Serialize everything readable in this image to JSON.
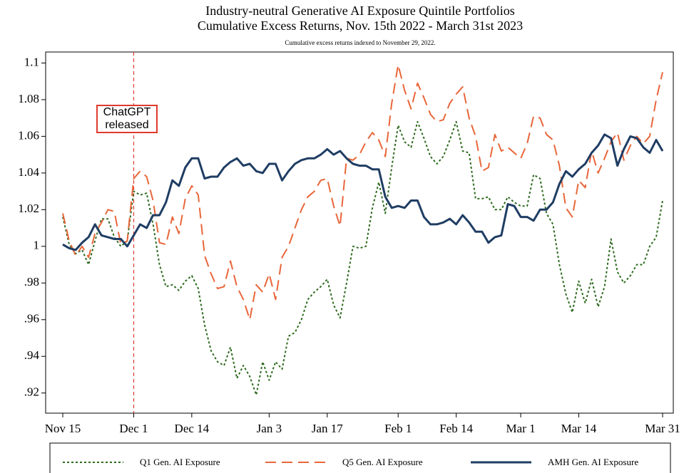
{
  "chart_data": {
    "type": "line",
    "title": [
      "Industry-neutral Generative AI Exposure Quintile Portfolios",
      "Cumulative Excess Returns, Nov. 15th 2022 - March 31st 2023"
    ],
    "subtitle": "Cumulative excess returns indexed to November 29, 2022.",
    "annotation": {
      "lines": [
        "ChatGPT",
        "released"
      ],
      "x": "Dec 1",
      "color": "#e03a2e"
    },
    "x": [
      "Nov 15",
      "Nov 16",
      "Nov 17",
      "Nov 18",
      "Nov 21",
      "Nov 22",
      "Nov 23",
      "Nov 25",
      "Nov 28",
      "Nov 29",
      "Nov 30",
      "Dec 1",
      "Dec 2",
      "Dec 5",
      "Dec 6",
      "Dec 7",
      "Dec 8",
      "Dec 9",
      "Dec 12",
      "Dec 13",
      "Dec 14",
      "Dec 15",
      "Dec 16",
      "Dec 19",
      "Dec 20",
      "Dec 21",
      "Dec 22",
      "Dec 23",
      "Dec 27",
      "Dec 28",
      "Dec 29",
      "Dec 30",
      "Jan 3",
      "Jan 4",
      "Jan 5",
      "Jan 6",
      "Jan 9",
      "Jan 10",
      "Jan 11",
      "Jan 12",
      "Jan 13",
      "Jan 17",
      "Jan 18",
      "Jan 19",
      "Jan 20",
      "Jan 23",
      "Jan 24",
      "Jan 25",
      "Jan 26",
      "Jan 27",
      "Jan 30",
      "Jan 31",
      "Feb 1",
      "Feb 2",
      "Feb 3",
      "Feb 6",
      "Feb 7",
      "Feb 8",
      "Feb 9",
      "Feb 10",
      "Feb 13",
      "Feb 14",
      "Feb 15",
      "Feb 16",
      "Feb 17",
      "Feb 21",
      "Feb 22",
      "Feb 23",
      "Feb 24",
      "Feb 27",
      "Feb 28",
      "Mar 1",
      "Mar 2",
      "Mar 3",
      "Mar 6",
      "Mar 7",
      "Mar 8",
      "Mar 9",
      "Mar 10",
      "Mar 13",
      "Mar 14",
      "Mar 15",
      "Mar 16",
      "Mar 17",
      "Mar 20",
      "Mar 21",
      "Mar 22",
      "Mar 23",
      "Mar 24",
      "Mar 27",
      "Mar 28",
      "Mar 29",
      "Mar 30",
      "Mar 31"
    ],
    "series": [
      {
        "name": "Q1 Gen. AI Exposure",
        "color": "#2e6b1f",
        "values": [
          1.016,
          1.001,
          0.996,
          0.998,
          0.99,
          1.003,
          1.015,
          1.015,
          1.005,
          1.0,
          1.003,
          1.03,
          1.028,
          1.029,
          1.012,
          0.99,
          0.978,
          0.979,
          0.976,
          0.981,
          0.984,
          0.977,
          0.957,
          0.943,
          0.937,
          0.935,
          0.945,
          0.928,
          0.935,
          0.929,
          0.919,
          0.937,
          0.927,
          0.937,
          0.933,
          0.951,
          0.953,
          0.96,
          0.971,
          0.975,
          0.978,
          0.982,
          0.968,
          0.961,
          0.98,
          1.0,
          0.999,
          1.0,
          1.021,
          1.035,
          1.018,
          1.043,
          1.066,
          1.057,
          1.054,
          1.068,
          1.059,
          1.049,
          1.045,
          1.049,
          1.058,
          1.068,
          1.052,
          1.051,
          1.026,
          1.026,
          1.027,
          1.02,
          1.02,
          1.027,
          1.024,
          1.022,
          1.022,
          1.039,
          1.037,
          1.018,
          1.012,
          0.99,
          0.974,
          0.964,
          0.981,
          0.969,
          0.982,
          0.967,
          0.978,
          1.004,
          0.986,
          0.98,
          0.984,
          0.99,
          0.99,
          1.0,
          1.005,
          1.025
        ]
      },
      {
        "name": "Q5 Gen. AI Exposure",
        "color": "#e8663a",
        "values": [
          1.018,
          1.003,
          0.995,
          1.0,
          0.994,
          1.007,
          1.013,
          1.02,
          1.019,
          1.001,
          1.003,
          1.037,
          1.041,
          1.038,
          1.025,
          1.002,
          1.001,
          1.016,
          1.007,
          1.026,
          1.033,
          1.028,
          0.995,
          0.985,
          0.977,
          0.978,
          0.992,
          0.978,
          0.971,
          0.96,
          0.979,
          0.975,
          0.985,
          0.971,
          0.994,
          1.0,
          1.01,
          1.02,
          1.027,
          1.03,
          1.036,
          1.037,
          1.022,
          1.011,
          1.048,
          1.047,
          1.05,
          1.057,
          1.062,
          1.058,
          1.049,
          1.078,
          1.099,
          1.085,
          1.075,
          1.089,
          1.081,
          1.072,
          1.068,
          1.069,
          1.078,
          1.083,
          1.087,
          1.07,
          1.06,
          1.041,
          1.043,
          1.061,
          1.052,
          1.054,
          1.051,
          1.048,
          1.056,
          1.071,
          1.07,
          1.061,
          1.058,
          1.044,
          1.021,
          1.016,
          1.036,
          1.032,
          1.052,
          1.04,
          1.048,
          1.057,
          1.062,
          1.047,
          1.055,
          1.06,
          1.056,
          1.06,
          1.08,
          1.095
        ]
      },
      {
        "name": "AMH Gen. AI Exposure",
        "color": "#1f3d63",
        "values": [
          1.001,
          0.999,
          0.998,
          1.002,
          1.005,
          1.012,
          1.006,
          1.005,
          1.004,
          1.004,
          1.0,
          1.006,
          1.012,
          1.01,
          1.017,
          1.017,
          1.024,
          1.036,
          1.033,
          1.043,
          1.048,
          1.048,
          1.037,
          1.038,
          1.038,
          1.043,
          1.046,
          1.048,
          1.044,
          1.045,
          1.041,
          1.04,
          1.045,
          1.045,
          1.036,
          1.041,
          1.045,
          1.047,
          1.048,
          1.048,
          1.05,
          1.053,
          1.05,
          1.052,
          1.048,
          1.045,
          1.044,
          1.044,
          1.042,
          1.042,
          1.027,
          1.021,
          1.022,
          1.021,
          1.025,
          1.025,
          1.016,
          1.012,
          1.012,
          1.013,
          1.015,
          1.012,
          1.017,
          1.013,
          1.008,
          1.008,
          1.002,
          1.005,
          1.006,
          1.023,
          1.022,
          1.016,
          1.016,
          1.014,
          1.02,
          1.02,
          1.024,
          1.034,
          1.041,
          1.038,
          1.042,
          1.045,
          1.051,
          1.055,
          1.061,
          1.059,
          1.044,
          1.053,
          1.06,
          1.059,
          1.054,
          1.051,
          1.058,
          1.052
        ]
      }
    ],
    "xticks": [
      "Nov 15",
      "Dec 1",
      "Dec 14",
      "Jan 3",
      "Jan 17",
      "Feb 1",
      "Feb 14",
      "Mar 1",
      "Mar 14",
      "Mar 31"
    ],
    "ylim": [
      0.909,
      1.106
    ],
    "yticks": [
      {
        "value": 0.92,
        "label": ".92"
      },
      {
        "value": 0.94,
        "label": ".94"
      },
      {
        "value": 0.96,
        "label": ".96"
      },
      {
        "value": 0.98,
        "label": ".98"
      },
      1,
      1.02,
      1.04,
      1.06,
      1.08,
      1.1
    ]
  }
}
